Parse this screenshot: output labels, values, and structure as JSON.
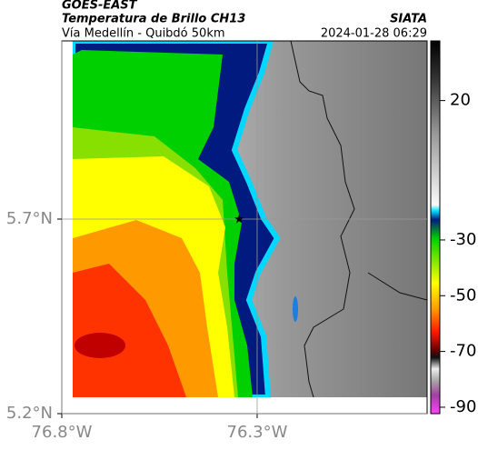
{
  "header": {
    "source": "GOES-EAST",
    "title": "Temperatura de Brillo CH13",
    "subtitle": "Vía Medellín - Quibdó 50km",
    "brand": "SIATA",
    "timestamp": "2024-01-28 06:29"
  },
  "map": {
    "xlim": [
      -76.8,
      -75.865
    ],
    "ylim": [
      5.2,
      6.158
    ],
    "xticks": [
      {
        "value": -76.8,
        "label": "76.8°W"
      },
      {
        "value": -76.3,
        "label": "76.3°W"
      }
    ],
    "yticks": [
      {
        "value": 5.2,
        "label": "5.2°N"
      },
      {
        "value": 5.7,
        "label": "5.7°N"
      }
    ],
    "marker": {
      "lon": -76.346,
      "lat": 5.7
    }
  },
  "colorbar": {
    "lim": [
      -92.3,
      41.4
    ],
    "ticks": [
      20,
      -30,
      -50,
      -70,
      -90
    ]
  }
}
